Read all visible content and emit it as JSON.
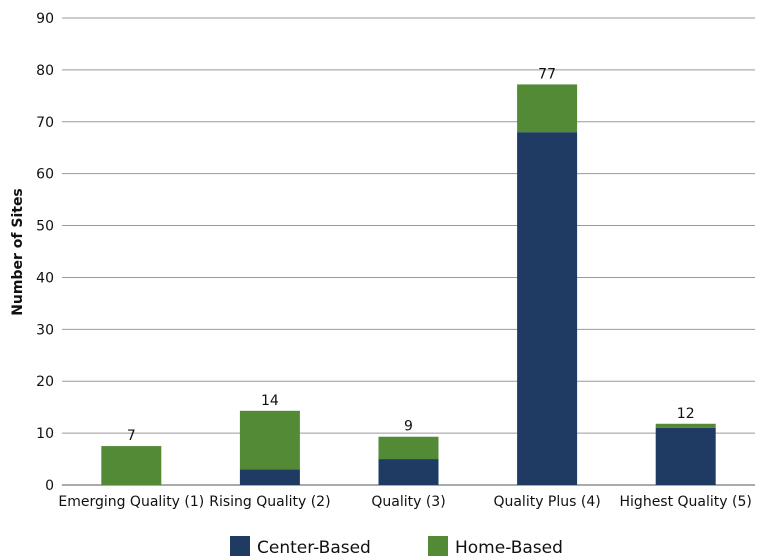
{
  "chart_data": {
    "type": "bar",
    "stacked": true,
    "categories": [
      "Emerging Quality (1)",
      "Rising Quality (2)",
      "Quality (3)",
      "Quality Plus (4)",
      "Highest Quality (5)"
    ],
    "series": [
      {
        "name": "Center-Based",
        "values": [
          0,
          3,
          5,
          68,
          11
        ],
        "color": "#1f3b63"
      },
      {
        "name": "Home-Based",
        "values": [
          7.5,
          11.3,
          4.3,
          9.2,
          0.8
        ],
        "color": "#538a36"
      }
    ],
    "totals": [
      "7",
      "14",
      "9",
      "77",
      "12"
    ],
    "ylabel": "Number of Sites",
    "xlabel": "",
    "ylim": [
      0,
      90
    ],
    "yticks": [
      "0",
      "10",
      "20",
      "30",
      "40",
      "50",
      "60",
      "70",
      "80",
      "90"
    ],
    "grid": true,
    "legend": "bottom"
  }
}
